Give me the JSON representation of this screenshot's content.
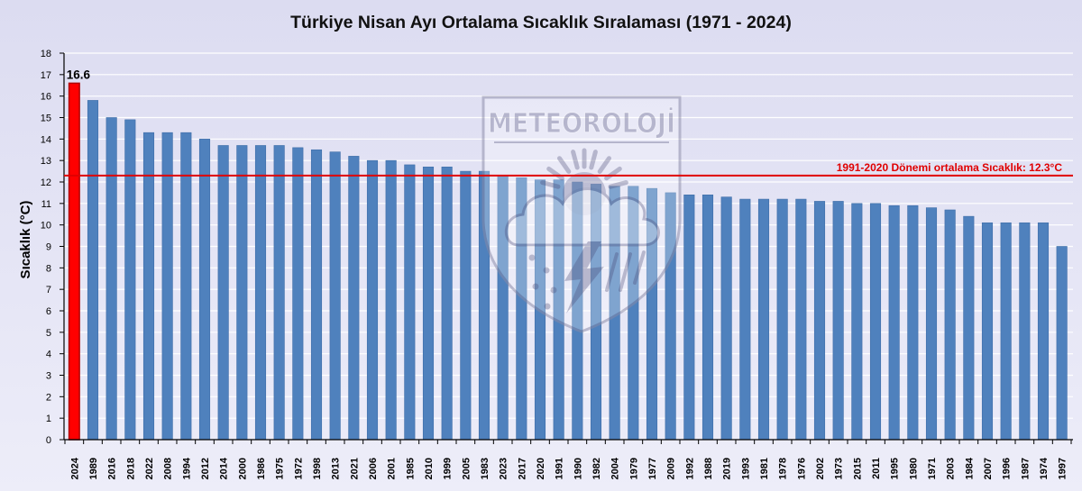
{
  "chart_data": {
    "type": "bar",
    "title": "Türkiye Nisan Ayı Ortalama Sıcaklık Sıralaması (1971 - 2024)",
    "xlabel": "",
    "ylabel": "Sıcaklık (°C)",
    "ylim": [
      0,
      18
    ],
    "yticks": [
      0,
      1,
      2,
      3,
      4,
      5,
      6,
      7,
      8,
      9,
      10,
      11,
      12,
      13,
      14,
      15,
      16,
      17,
      18
    ],
    "grid": true,
    "bar_color": "#4f81bd",
    "categories": [
      "2024",
      "1989",
      "2016",
      "2018",
      "2022",
      "2008",
      "1994",
      "2012",
      "2014",
      "2000",
      "1986",
      "1975",
      "1972",
      "1998",
      "2013",
      "2021",
      "2006",
      "2001",
      "1985",
      "2010",
      "1999",
      "2005",
      "1983",
      "2023",
      "2017",
      "2020",
      "1991",
      "1990",
      "1982",
      "2004",
      "1979",
      "1977",
      "2009",
      "1992",
      "1988",
      "2019",
      "1993",
      "1981",
      "1978",
      "1976",
      "2002",
      "1973",
      "2015",
      "2011",
      "1995",
      "1980",
      "1971",
      "2003",
      "1984",
      "2007",
      "1996",
      "1987",
      "1974",
      "1997"
    ],
    "values": [
      16.6,
      15.8,
      15.0,
      14.9,
      14.3,
      14.3,
      14.3,
      14.0,
      13.7,
      13.7,
      13.7,
      13.7,
      13.6,
      13.5,
      13.4,
      13.2,
      13.0,
      13.0,
      12.8,
      12.7,
      12.7,
      12.5,
      12.5,
      12.3,
      12.2,
      12.1,
      12.1,
      12.0,
      11.9,
      11.8,
      11.8,
      11.7,
      11.5,
      11.4,
      11.4,
      11.3,
      11.2,
      11.2,
      11.2,
      11.2,
      11.1,
      11.1,
      11.0,
      11.0,
      10.9,
      10.9,
      10.8,
      10.7,
      10.4,
      10.1,
      10.1,
      10.1,
      10.1,
      9.0
    ],
    "highlight": {
      "category": "2024",
      "color": "#ff0000",
      "data_label": "16.6"
    },
    "reference_line": {
      "value": 12.3,
      "label": "1991-2020 Dönemi ortalama Sıcaklık: 12.3°C",
      "color": "#e00000"
    }
  },
  "watermark": {
    "text": "METEOROLOJİ"
  }
}
